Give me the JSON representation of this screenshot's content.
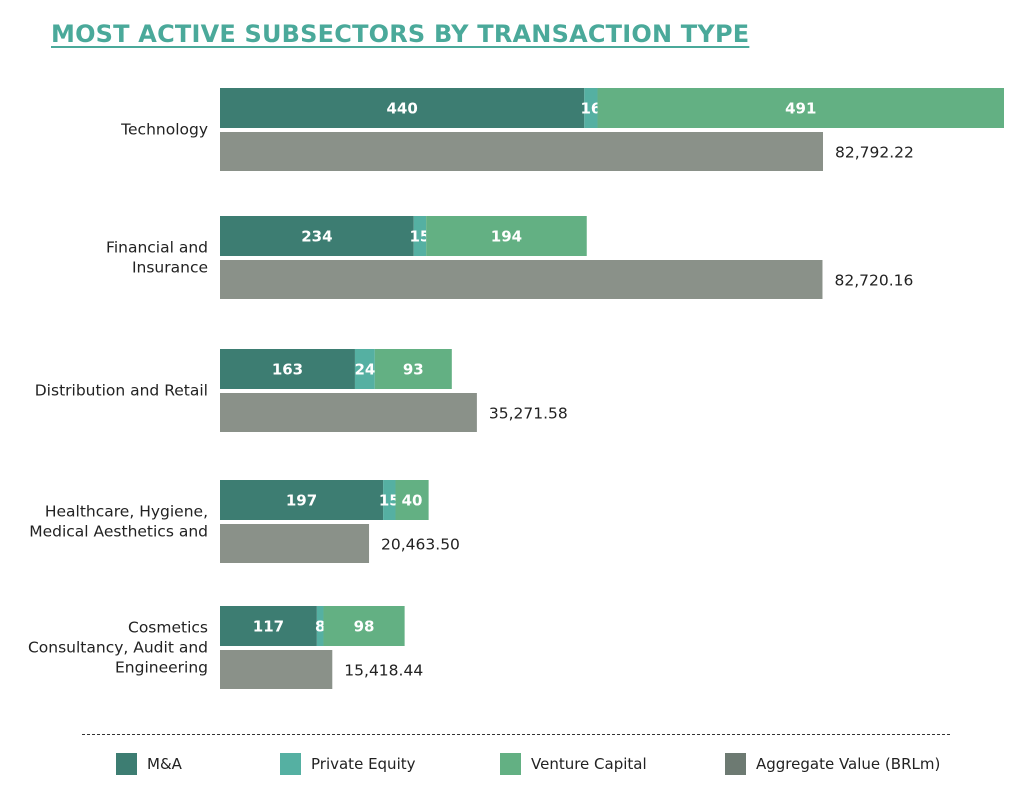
{
  "title": "MOST ACTIVE SUBSECTORS BY TRANSACTION TYPE",
  "colors": {
    "title": "#4aa99a",
    "ma": "#3d7d72",
    "pe": "#55b0a2",
    "vc": "#63b083",
    "agg": "#8a9189",
    "agg_legend": "#6d7a72"
  },
  "legend": {
    "ma": "M&A",
    "pe": "Private Equity",
    "vc": "Venture Capital",
    "agg": "Aggregate Value (BRLm)"
  },
  "chart_data": {
    "type": "bar",
    "orientation": "horizontal",
    "stacked": true,
    "categories": [
      [
        "Technology"
      ],
      [
        "Financial and",
        "Insurance"
      ],
      [
        "Distribution and Retail"
      ],
      [
        "Healthcare, Hygiene,",
        "Medical Aesthetics and"
      ],
      [
        "Cosmetics",
        "Consultancy, Audit and",
        "Engineering"
      ]
    ],
    "series": [
      {
        "name": "M&A",
        "values": [
          440,
          234,
          163,
          197,
          117
        ]
      },
      {
        "name": "Private Equity",
        "values": [
          16,
          15,
          24,
          15,
          8
        ]
      },
      {
        "name": "Venture Capital",
        "values": [
          491,
          194,
          93,
          40,
          98
        ]
      }
    ],
    "aggregate": {
      "name": "Aggregate Value (BRLm)",
      "values": [
        82792.22,
        82720.16,
        35271.58,
        20463.5,
        15418.44
      ],
      "labels": [
        "82,792.22",
        "82,720.16",
        "35,271.58",
        "20,463.50",
        "15,418.44"
      ]
    },
    "legend_position": "bottom",
    "grid": false
  }
}
